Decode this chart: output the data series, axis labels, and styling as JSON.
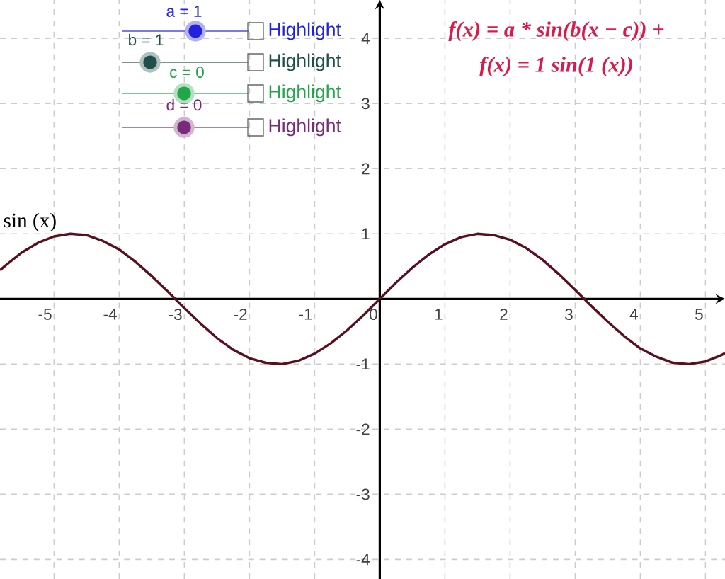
{
  "chart_data": {
    "type": "line",
    "xlim": [
      -5.83,
      5.3
    ],
    "ylim": [
      -4.3,
      4.59
    ],
    "xticks": [
      -5,
      -4,
      -3,
      -2,
      -1,
      0,
      1,
      2,
      3,
      4,
      5
    ],
    "yticks": [
      -4,
      -3,
      -2,
      -1,
      1,
      2,
      3,
      4
    ],
    "grid": true,
    "series": [
      {
        "name": "sin (x)",
        "color": "#5a0f1f",
        "x": [
          -5.83,
          -5.75,
          -5.5,
          -5.25,
          -5,
          -4.75,
          -4.5,
          -4.25,
          -4,
          -3.75,
          -3.5,
          -3.25,
          -3,
          -2.75,
          -2.5,
          -2.25,
          -2,
          -1.75,
          -1.5,
          -1.25,
          -1,
          -0.75,
          -0.5,
          -0.25,
          0,
          0.25,
          0.5,
          0.75,
          1,
          1.25,
          1.5,
          1.75,
          2,
          2.25,
          2.5,
          2.75,
          3,
          3.25,
          3.5,
          3.75,
          4,
          4.25,
          4.5,
          4.75,
          5,
          5.25,
          5.3
        ],
        "values": [
          0.44,
          0.51,
          0.71,
          0.86,
          0.96,
          1.0,
          0.98,
          0.89,
          0.76,
          0.57,
          0.35,
          0.11,
          -0.14,
          -0.38,
          -0.6,
          -0.78,
          -0.91,
          -0.98,
          -1.0,
          -0.95,
          -0.84,
          -0.68,
          -0.48,
          -0.25,
          0,
          0.25,
          0.48,
          0.68,
          0.84,
          0.95,
          1.0,
          0.98,
          0.91,
          0.78,
          0.6,
          0.38,
          0.14,
          -0.11,
          -0.35,
          -0.57,
          -0.76,
          -0.89,
          -0.98,
          -1.0,
          -0.96,
          -0.86,
          -0.83
        ]
      }
    ],
    "annotations": [
      "a = 1",
      "b = 1",
      "c = 0",
      "d = 0",
      "Highlight",
      "Highlight",
      "Highlight",
      "Highlight",
      "f(x) = a * sin(b(x − c)) +",
      "f(x) = 1 sin(1 (x))"
    ]
  }
}
